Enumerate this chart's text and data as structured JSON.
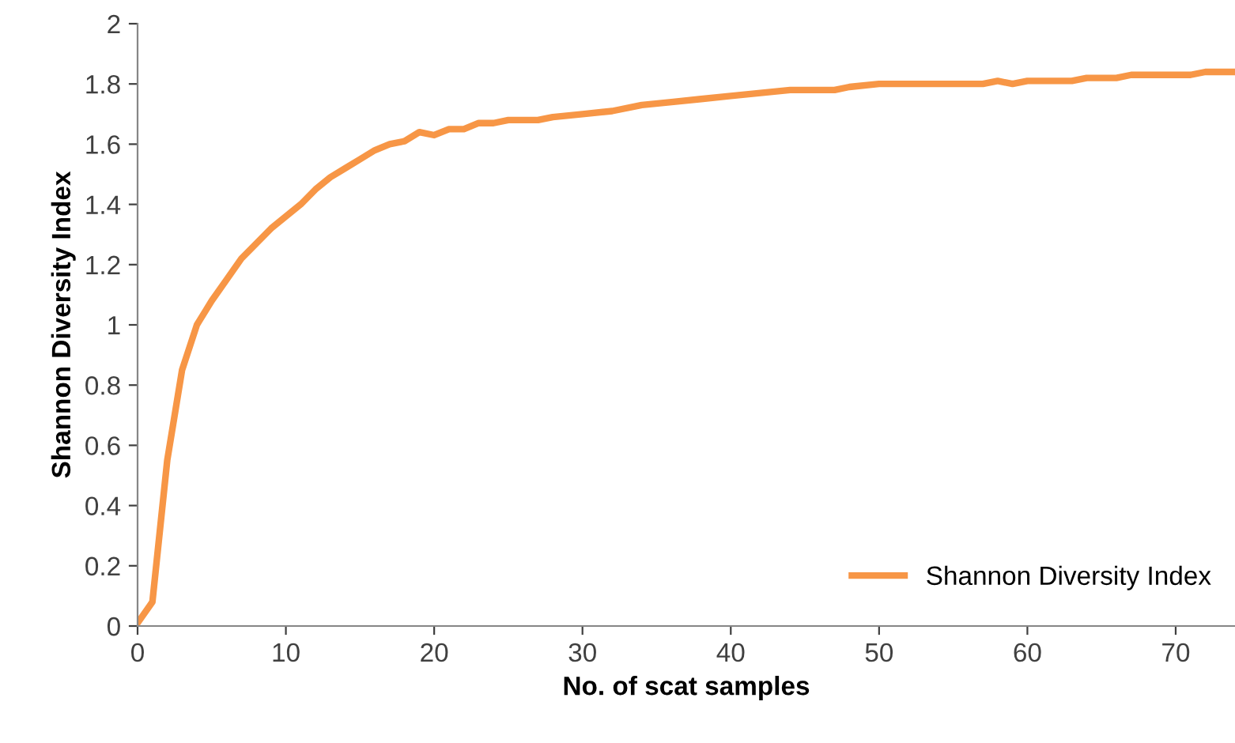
{
  "chart_data": {
    "type": "line",
    "xlabel": "No. of scat samples",
    "ylabel": "Shannon Diversity Index",
    "x": [
      0,
      1,
      2,
      3,
      4,
      5,
      6,
      7,
      8,
      9,
      10,
      11,
      12,
      13,
      14,
      15,
      16,
      17,
      18,
      19,
      20,
      21,
      22,
      23,
      24,
      25,
      27,
      28,
      30,
      32,
      34,
      36,
      38,
      40,
      42,
      44,
      47,
      48,
      50,
      57,
      58,
      59,
      60,
      63,
      64,
      66,
      67,
      71,
      72,
      74
    ],
    "series": [
      {
        "name": "Shannon Diversity Index",
        "color": "#f79646",
        "values": [
          0.01,
          0.08,
          0.55,
          0.85,
          1.0,
          1.08,
          1.15,
          1.22,
          1.27,
          1.32,
          1.36,
          1.4,
          1.45,
          1.49,
          1.52,
          1.55,
          1.58,
          1.6,
          1.61,
          1.64,
          1.63,
          1.65,
          1.65,
          1.67,
          1.67,
          1.68,
          1.68,
          1.69,
          1.7,
          1.71,
          1.73,
          1.74,
          1.75,
          1.76,
          1.77,
          1.78,
          1.78,
          1.79,
          1.8,
          1.8,
          1.81,
          1.8,
          1.81,
          1.81,
          1.82,
          1.82,
          1.83,
          1.83,
          1.84,
          1.84
        ]
      }
    ],
    "xlim": [
      0,
      74
    ],
    "xticks": [
      0,
      10,
      20,
      30,
      40,
      50,
      60,
      70
    ],
    "ylim": [
      0,
      2
    ],
    "yticks": [
      0,
      0.2,
      0.4,
      0.6,
      0.8,
      1,
      1.2,
      1.4,
      1.6,
      1.8,
      2
    ],
    "legend": "bottom right",
    "grid": false,
    "marker": "none",
    "line_style": "solid"
  }
}
